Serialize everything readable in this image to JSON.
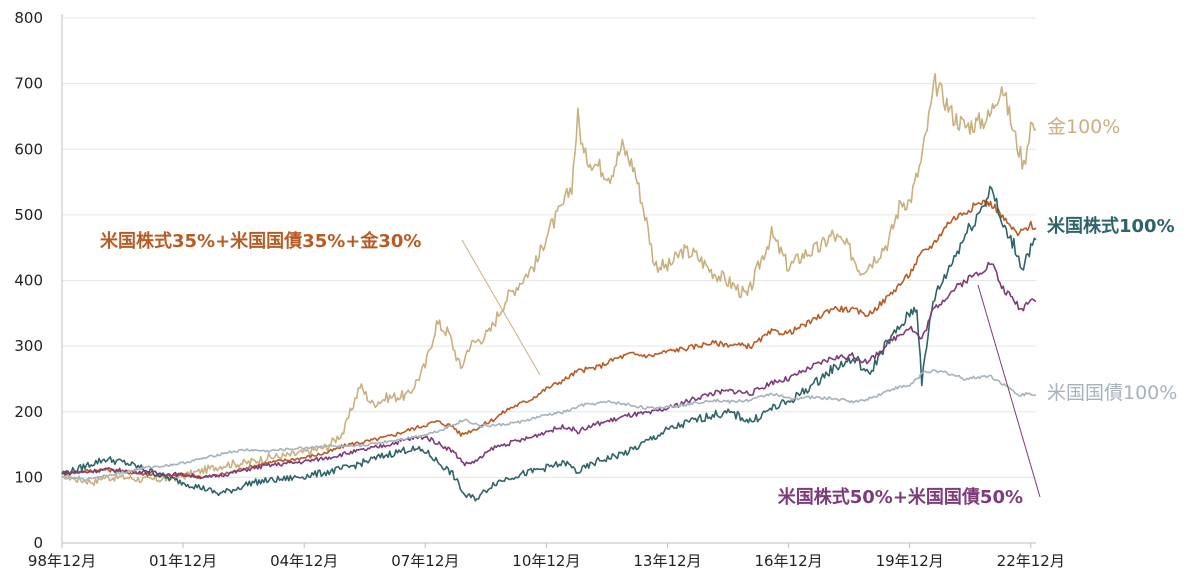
{
  "chart_data": {
    "type": "line",
    "ylim": [
      0,
      800
    ],
    "yticks": [
      0,
      100,
      200,
      300,
      400,
      500,
      600,
      700,
      800
    ],
    "xlim": [
      1998.92,
      2023.05
    ],
    "xticks": [
      {
        "x": 1998.92,
        "label": "98年12月"
      },
      {
        "x": 2001.92,
        "label": "01年12月"
      },
      {
        "x": 2004.92,
        "label": "04年12月"
      },
      {
        "x": 2007.92,
        "label": "07年12月"
      },
      {
        "x": 2010.92,
        "label": "10年12月"
      },
      {
        "x": 2013.92,
        "label": "13年12月"
      },
      {
        "x": 2016.92,
        "label": "16年12月"
      },
      {
        "x": 2019.92,
        "label": "19年12月"
      },
      {
        "x": 2022.92,
        "label": "22年12月"
      }
    ],
    "grid": "horizontal",
    "series": [
      {
        "name": "金100%",
        "color": "#c8b07f",
        "points": [
          [
            1998.92,
            104
          ],
          [
            1999.3,
            97
          ],
          [
            1999.75,
            93
          ],
          [
            1999.9,
            100
          ],
          [
            2000.5,
            100
          ],
          [
            2001.0,
            96
          ],
          [
            2001.5,
            98
          ],
          [
            2001.92,
            102
          ],
          [
            2002.5,
            112
          ],
          [
            2003.0,
            120
          ],
          [
            2003.5,
            122
          ],
          [
            2004.0,
            130
          ],
          [
            2004.5,
            133
          ],
          [
            2004.92,
            138
          ],
          [
            2005.5,
            147
          ],
          [
            2005.9,
            170
          ],
          [
            2006.3,
            240
          ],
          [
            2006.6,
            212
          ],
          [
            2007.0,
            222
          ],
          [
            2007.5,
            225
          ],
          [
            2007.92,
            270
          ],
          [
            2008.2,
            335
          ],
          [
            2008.5,
            320
          ],
          [
            2008.8,
            265
          ],
          [
            2009.0,
            300
          ],
          [
            2009.5,
            320
          ],
          [
            2009.9,
            370
          ],
          [
            2010.3,
            400
          ],
          [
            2010.7,
            430
          ],
          [
            2010.92,
            470
          ],
          [
            2011.3,
            510
          ],
          [
            2011.55,
            545
          ],
          [
            2011.7,
            650
          ],
          [
            2011.85,
            590
          ],
          [
            2012.2,
            575
          ],
          [
            2012.5,
            560
          ],
          [
            2012.8,
            605
          ],
          [
            2013.1,
            570
          ],
          [
            2013.4,
            490
          ],
          [
            2013.6,
            425
          ],
          [
            2013.92,
            420
          ],
          [
            2014.3,
            445
          ],
          [
            2014.6,
            440
          ],
          [
            2015.0,
            415
          ],
          [
            2015.5,
            395
          ],
          [
            2015.9,
            375
          ],
          [
            2016.2,
            425
          ],
          [
            2016.5,
            470
          ],
          [
            2016.92,
            420
          ],
          [
            2017.3,
            440
          ],
          [
            2017.7,
            450
          ],
          [
            2018.0,
            470
          ],
          [
            2018.4,
            450
          ],
          [
            2018.7,
            415
          ],
          [
            2019.0,
            430
          ],
          [
            2019.4,
            460
          ],
          [
            2019.7,
            520
          ],
          [
            2019.92,
            520
          ],
          [
            2020.2,
            580
          ],
          [
            2020.55,
            700
          ],
          [
            2020.8,
            675
          ],
          [
            2021.0,
            650
          ],
          [
            2021.3,
            635
          ],
          [
            2021.6,
            640
          ],
          [
            2021.9,
            650
          ],
          [
            2022.2,
            700
          ],
          [
            2022.5,
            625
          ],
          [
            2022.75,
            575
          ],
          [
            2022.92,
            640
          ],
          [
            2023.05,
            630
          ]
        ]
      },
      {
        "name": "米国株式35%+米国国債35%+金30%",
        "color": "#b85c25",
        "points": [
          [
            1998.92,
            107
          ],
          [
            1999.5,
            110
          ],
          [
            2000.0,
            112
          ],
          [
            2000.5,
            108
          ],
          [
            2001.0,
            105
          ],
          [
            2001.5,
            102
          ],
          [
            2001.92,
            104
          ],
          [
            2002.5,
            100
          ],
          [
            2003.0,
            106
          ],
          [
            2003.5,
            115
          ],
          [
            2004.0,
            122
          ],
          [
            2004.92,
            130
          ],
          [
            2005.5,
            138
          ],
          [
            2006.0,
            150
          ],
          [
            2006.5,
            155
          ],
          [
            2007.0,
            162
          ],
          [
            2007.5,
            172
          ],
          [
            2007.92,
            180
          ],
          [
            2008.2,
            185
          ],
          [
            2008.6,
            178
          ],
          [
            2008.8,
            165
          ],
          [
            2009.2,
            175
          ],
          [
            2009.6,
            188
          ],
          [
            2010.0,
            205
          ],
          [
            2010.5,
            218
          ],
          [
            2010.92,
            235
          ],
          [
            2011.4,
            250
          ],
          [
            2011.7,
            262
          ],
          [
            2012.2,
            268
          ],
          [
            2012.6,
            280
          ],
          [
            2013.0,
            288
          ],
          [
            2013.5,
            285
          ],
          [
            2013.92,
            292
          ],
          [
            2014.5,
            298
          ],
          [
            2015.0,
            305
          ],
          [
            2015.5,
            302
          ],
          [
            2016.0,
            300
          ],
          [
            2016.5,
            322
          ],
          [
            2016.92,
            320
          ],
          [
            2017.5,
            338
          ],
          [
            2018.0,
            358
          ],
          [
            2018.5,
            355
          ],
          [
            2018.9,
            348
          ],
          [
            2019.3,
            370
          ],
          [
            2019.92,
            410
          ],
          [
            2020.2,
            440
          ],
          [
            2020.5,
            455
          ],
          [
            2020.9,
            490
          ],
          [
            2021.3,
            505
          ],
          [
            2021.7,
            520
          ],
          [
            2022.0,
            515
          ],
          [
            2022.3,
            490
          ],
          [
            2022.6,
            470
          ],
          [
            2022.92,
            485
          ],
          [
            2023.05,
            480
          ]
        ]
      },
      {
        "name": "米国株式100%",
        "color": "#2e6368",
        "points": [
          [
            1998.92,
            106
          ],
          [
            1999.3,
            112
          ],
          [
            1999.6,
            120
          ],
          [
            2000.0,
            128
          ],
          [
            2000.5,
            122
          ],
          [
            2001.0,
            112
          ],
          [
            2001.5,
            100
          ],
          [
            2001.92,
            92
          ],
          [
            2002.5,
            82
          ],
          [
            2002.8,
            75
          ],
          [
            2003.2,
            82
          ],
          [
            2003.6,
            92
          ],
          [
            2004.0,
            95
          ],
          [
            2004.5,
            98
          ],
          [
            2004.92,
            102
          ],
          [
            2005.5,
            108
          ],
          [
            2006.0,
            115
          ],
          [
            2006.5,
            125
          ],
          [
            2007.0,
            135
          ],
          [
            2007.5,
            143
          ],
          [
            2007.92,
            140
          ],
          [
            2008.3,
            120
          ],
          [
            2008.6,
            105
          ],
          [
            2008.9,
            72
          ],
          [
            2009.2,
            68
          ],
          [
            2009.6,
            90
          ],
          [
            2010.0,
            100
          ],
          [
            2010.5,
            108
          ],
          [
            2010.92,
            115
          ],
          [
            2011.4,
            122
          ],
          [
            2011.7,
            108
          ],
          [
            2012.2,
            125
          ],
          [
            2012.6,
            132
          ],
          [
            2013.0,
            140
          ],
          [
            2013.5,
            158
          ],
          [
            2013.92,
            172
          ],
          [
            2014.5,
            185
          ],
          [
            2015.0,
            195
          ],
          [
            2015.5,
            198
          ],
          [
            2016.0,
            185
          ],
          [
            2016.5,
            205
          ],
          [
            2016.92,
            215
          ],
          [
            2017.5,
            240
          ],
          [
            2018.0,
            265
          ],
          [
            2018.3,
            275
          ],
          [
            2018.6,
            280
          ],
          [
            2018.9,
            255
          ],
          [
            2019.3,
            300
          ],
          [
            2019.7,
            330
          ],
          [
            2019.92,
            350
          ],
          [
            2020.1,
            360
          ],
          [
            2020.22,
            245
          ],
          [
            2020.5,
            370
          ],
          [
            2020.9,
            420
          ],
          [
            2021.3,
            470
          ],
          [
            2021.7,
            510
          ],
          [
            2021.95,
            545
          ],
          [
            2022.2,
            485
          ],
          [
            2022.5,
            455
          ],
          [
            2022.7,
            420
          ],
          [
            2022.92,
            450
          ],
          [
            2023.05,
            462
          ]
        ]
      },
      {
        "name": "米国株式50%+米国国債50%",
        "color": "#7d3b7a",
        "points": [
          [
            1998.92,
            106
          ],
          [
            1999.5,
            108
          ],
          [
            2000.0,
            112
          ],
          [
            2000.5,
            110
          ],
          [
            2001.0,
            108
          ],
          [
            2001.5,
            105
          ],
          [
            2001.92,
            104
          ],
          [
            2002.5,
            100
          ],
          [
            2003.0,
            105
          ],
          [
            2003.5,
            112
          ],
          [
            2004.0,
            118
          ],
          [
            2004.92,
            124
          ],
          [
            2005.5,
            130
          ],
          [
            2006.0,
            137
          ],
          [
            2006.5,
            143
          ],
          [
            2007.0,
            150
          ],
          [
            2007.5,
            158
          ],
          [
            2007.92,
            162
          ],
          [
            2008.3,
            150
          ],
          [
            2008.6,
            140
          ],
          [
            2008.9,
            120
          ],
          [
            2009.2,
            125
          ],
          [
            2009.6,
            145
          ],
          [
            2010.0,
            152
          ],
          [
            2010.5,
            160
          ],
          [
            2010.92,
            170
          ],
          [
            2011.4,
            178
          ],
          [
            2011.7,
            170
          ],
          [
            2012.2,
            182
          ],
          [
            2012.6,
            188
          ],
          [
            2013.0,
            195
          ],
          [
            2013.5,
            198
          ],
          [
            2013.92,
            205
          ],
          [
            2014.5,
            218
          ],
          [
            2015.0,
            228
          ],
          [
            2015.5,
            232
          ],
          [
            2016.0,
            228
          ],
          [
            2016.5,
            245
          ],
          [
            2016.92,
            250
          ],
          [
            2017.5,
            268
          ],
          [
            2018.0,
            282
          ],
          [
            2018.5,
            285
          ],
          [
            2018.9,
            275
          ],
          [
            2019.3,
            300
          ],
          [
            2019.92,
            330
          ],
          [
            2020.22,
            310
          ],
          [
            2020.5,
            355
          ],
          [
            2020.9,
            380
          ],
          [
            2021.3,
            400
          ],
          [
            2021.7,
            415
          ],
          [
            2021.95,
            428
          ],
          [
            2022.2,
            390
          ],
          [
            2022.5,
            370
          ],
          [
            2022.7,
            355
          ],
          [
            2022.92,
            375
          ],
          [
            2023.05,
            368
          ]
        ]
      },
      {
        "name": "米国国債100%",
        "color": "#a6b2bc",
        "points": [
          [
            1998.92,
            100
          ],
          [
            1999.5,
            97
          ],
          [
            2000.0,
            103
          ],
          [
            2000.5,
            108
          ],
          [
            2001.0,
            115
          ],
          [
            2001.5,
            118
          ],
          [
            2001.92,
            122
          ],
          [
            2002.5,
            130
          ],
          [
            2003.0,
            138
          ],
          [
            2003.5,
            142
          ],
          [
            2004.0,
            140
          ],
          [
            2004.92,
            145
          ],
          [
            2005.5,
            148
          ],
          [
            2006.0,
            146
          ],
          [
            2006.5,
            150
          ],
          [
            2007.0,
            155
          ],
          [
            2007.5,
            160
          ],
          [
            2007.92,
            165
          ],
          [
            2008.3,
            172
          ],
          [
            2008.9,
            188
          ],
          [
            2009.3,
            178
          ],
          [
            2009.8,
            180
          ],
          [
            2010.3,
            185
          ],
          [
            2010.92,
            195
          ],
          [
            2011.4,
            200
          ],
          [
            2011.8,
            210
          ],
          [
            2012.5,
            215
          ],
          [
            2013.0,
            210
          ],
          [
            2013.5,
            205
          ],
          [
            2013.92,
            208
          ],
          [
            2014.5,
            212
          ],
          [
            2015.0,
            218
          ],
          [
            2015.5,
            215
          ],
          [
            2016.0,
            218
          ],
          [
            2016.5,
            228
          ],
          [
            2016.92,
            220
          ],
          [
            2017.5,
            222
          ],
          [
            2018.0,
            220
          ],
          [
            2018.6,
            215
          ],
          [
            2019.0,
            222
          ],
          [
            2019.5,
            235
          ],
          [
            2019.92,
            240
          ],
          [
            2020.3,
            262
          ],
          [
            2020.8,
            260
          ],
          [
            2021.3,
            250
          ],
          [
            2021.9,
            255
          ],
          [
            2022.3,
            240
          ],
          [
            2022.6,
            225
          ],
          [
            2022.92,
            228
          ],
          [
            2023.05,
            225
          ]
        ]
      }
    ],
    "labels": [
      {
        "text": "金100%",
        "color": "#c8b07f",
        "weight": "normal"
      },
      {
        "text": "米国株式100%",
        "color": "#2e6368",
        "weight": "bold"
      },
      {
        "text": "米国株式35%+米国国債35%+金30%",
        "color": "#b85c25",
        "weight": "bold"
      },
      {
        "text": "米国国債100%",
        "color": "#a6b2bc",
        "weight": "normal"
      },
      {
        "text": "米国株式50%+米国国債50%",
        "color": "#7d3b7a",
        "weight": "bold"
      }
    ]
  }
}
